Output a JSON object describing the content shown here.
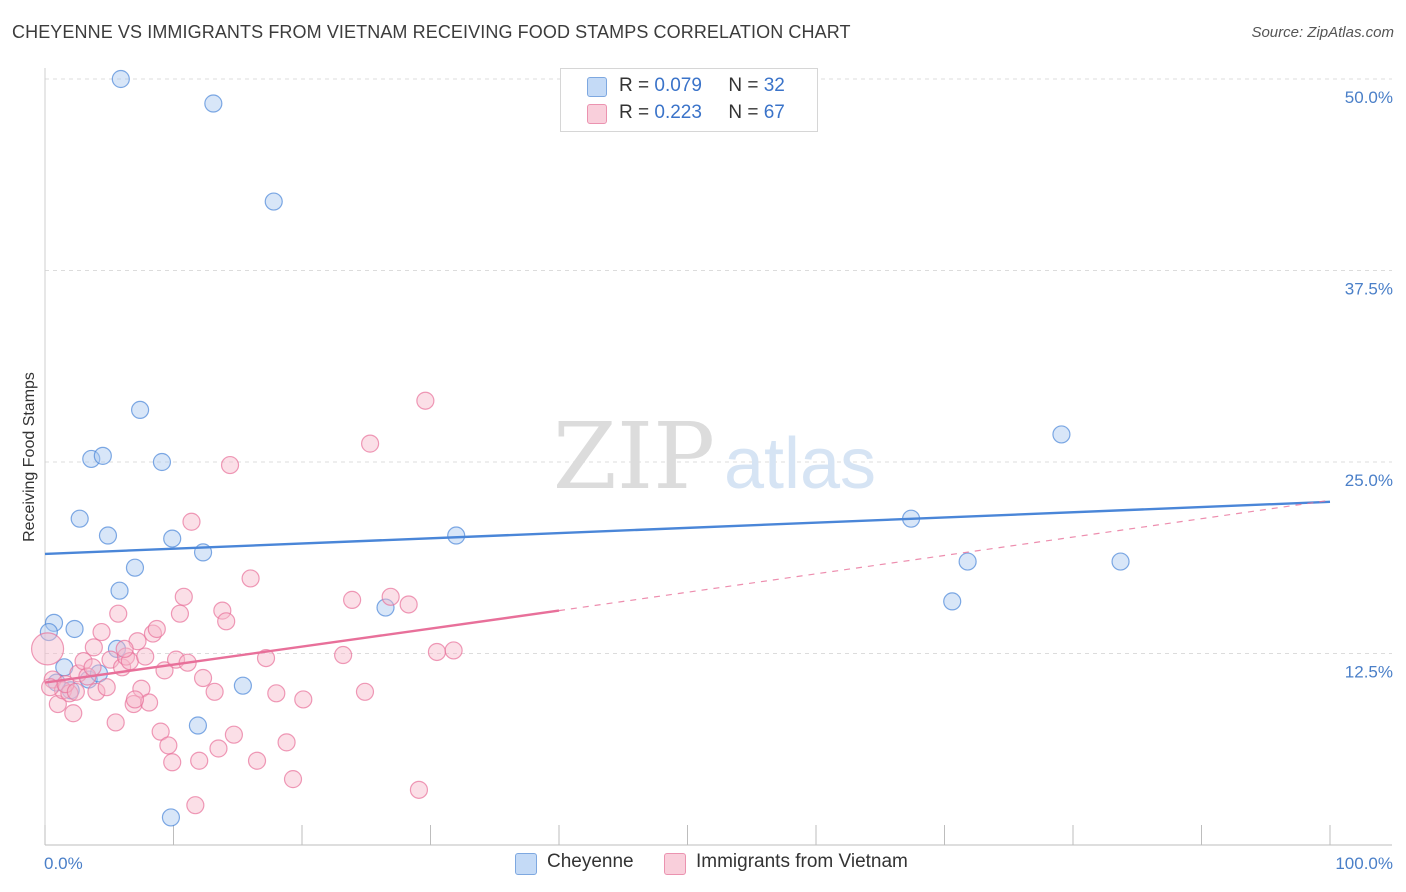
{
  "header": {
    "title": "CHEYENNE VS IMMIGRANTS FROM VIETNAM RECEIVING FOOD STAMPS CORRELATION CHART",
    "source": "Source: ZipAtlas.com"
  },
  "watermark": {
    "zip": "ZIP",
    "atlas": "atlas"
  },
  "legend": {
    "rows": [
      {
        "r_label": "R =",
        "r_value": "0.079",
        "n_label": "N =",
        "n_value": "32",
        "color": "#a8c8f0"
      },
      {
        "r_label": "R =",
        "r_value": "0.223",
        "n_label": "N =",
        "n_value": "67",
        "color": "#f6b8ca"
      }
    ]
  },
  "bottom_legend": [
    {
      "label": "Cheyenne",
      "color": "#a8c8f0"
    },
    {
      "label": "Immigrants from Vietnam",
      "color": "#f6b8ca"
    }
  ],
  "chart_data": {
    "type": "scatter",
    "title": "CHEYENNE VS IMMIGRANTS FROM VIETNAM RECEIVING FOOD STAMPS CORRELATION CHART",
    "ylabel": "Receiving Food Stamps",
    "xlim": [
      0,
      100
    ],
    "ylim": [
      0,
      50
    ],
    "x_tick_labels": [
      "0.0%",
      "100.0%"
    ],
    "y_ticks": [
      12.5,
      25.0,
      37.5,
      50.0
    ],
    "y_tick_labels": [
      "12.5%",
      "25.0%",
      "37.5%",
      "50.0%"
    ],
    "grid": true,
    "legend_position": "top-center",
    "series": [
      {
        "name": "Cheyenne",
        "color": "#4a86d8",
        "fill": "#a8c8f0",
        "trend": {
          "x": [
            0,
            100
          ],
          "y": [
            19.0,
            22.4
          ]
        },
        "points": [
          [
            5.9,
            50.0
          ],
          [
            13.1,
            48.4
          ],
          [
            17.8,
            42.0
          ],
          [
            7.4,
            28.4
          ],
          [
            3.6,
            25.2
          ],
          [
            4.5,
            25.4
          ],
          [
            9.1,
            25.0
          ],
          [
            2.7,
            21.3
          ],
          [
            4.9,
            20.2
          ],
          [
            9.9,
            20.0
          ],
          [
            12.3,
            19.1
          ],
          [
            7.0,
            18.1
          ],
          [
            5.8,
            16.6
          ],
          [
            0.7,
            14.5
          ],
          [
            2.3,
            14.1
          ],
          [
            0.3,
            13.9
          ],
          [
            1.5,
            11.6
          ],
          [
            2.0,
            10.1
          ],
          [
            3.4,
            10.8
          ],
          [
            4.2,
            11.2
          ],
          [
            5.6,
            12.8
          ],
          [
            15.4,
            10.4
          ],
          [
            11.9,
            7.8
          ],
          [
            9.8,
            1.8
          ],
          [
            32.0,
            20.2
          ],
          [
            26.5,
            15.5
          ],
          [
            67.4,
            21.3
          ],
          [
            71.8,
            18.5
          ],
          [
            70.6,
            15.9
          ],
          [
            79.1,
            26.8
          ],
          [
            83.7,
            18.5
          ],
          [
            0.9,
            10.6
          ]
        ]
      },
      {
        "name": "Immigrants from Vietnam",
        "color": "#e8709a",
        "fill": "#f6b8ca",
        "trend": {
          "x": [
            0,
            40
          ],
          "y": [
            10.6,
            15.3
          ]
        },
        "trend_dashed": {
          "x": [
            40,
            100
          ],
          "y": [
            15.3,
            22.5
          ]
        },
        "points": [
          [
            0.2,
            12.8
          ],
          [
            0.6,
            10.8
          ],
          [
            1.0,
            9.2
          ],
          [
            1.4,
            10.1
          ],
          [
            1.9,
            9.9
          ],
          [
            2.2,
            8.6
          ],
          [
            2.6,
            11.2
          ],
          [
            3.0,
            12.0
          ],
          [
            3.3,
            11.0
          ],
          [
            3.7,
            11.6
          ],
          [
            4.0,
            10.0
          ],
          [
            4.4,
            13.9
          ],
          [
            4.8,
            10.3
          ],
          [
            5.1,
            12.1
          ],
          [
            5.5,
            8.0
          ],
          [
            5.7,
            15.1
          ],
          [
            6.0,
            11.6
          ],
          [
            6.3,
            12.3
          ],
          [
            6.6,
            12.0
          ],
          [
            6.9,
            9.2
          ],
          [
            7.2,
            13.3
          ],
          [
            7.5,
            10.2
          ],
          [
            7.8,
            12.3
          ],
          [
            8.1,
            9.3
          ],
          [
            8.4,
            13.8
          ],
          [
            8.7,
            14.1
          ],
          [
            9.0,
            7.4
          ],
          [
            9.3,
            11.4
          ],
          [
            9.6,
            6.5
          ],
          [
            9.9,
            5.4
          ],
          [
            10.2,
            12.1
          ],
          [
            10.5,
            15.1
          ],
          [
            10.8,
            16.2
          ],
          [
            11.1,
            11.9
          ],
          [
            11.4,
            21.1
          ],
          [
            11.7,
            2.6
          ],
          [
            12.0,
            5.5
          ],
          [
            12.3,
            10.9
          ],
          [
            13.2,
            10.0
          ],
          [
            13.5,
            6.3
          ],
          [
            13.8,
            15.3
          ],
          [
            14.1,
            14.6
          ],
          [
            14.4,
            24.8
          ],
          [
            14.7,
            7.2
          ],
          [
            16.0,
            17.4
          ],
          [
            16.5,
            5.5
          ],
          [
            17.2,
            12.2
          ],
          [
            18.0,
            9.9
          ],
          [
            18.8,
            6.7
          ],
          [
            19.3,
            4.3
          ],
          [
            20.1,
            9.5
          ],
          [
            23.2,
            12.4
          ],
          [
            23.9,
            16.0
          ],
          [
            24.9,
            10.0
          ],
          [
            25.3,
            26.2
          ],
          [
            26.9,
            16.2
          ],
          [
            28.3,
            15.7
          ],
          [
            29.1,
            3.6
          ],
          [
            29.6,
            29.0
          ],
          [
            30.5,
            12.6
          ],
          [
            31.8,
            12.7
          ],
          [
            0.4,
            10.3
          ],
          [
            1.6,
            10.5
          ],
          [
            2.4,
            10.0
          ],
          [
            3.8,
            12.9
          ],
          [
            6.2,
            12.8
          ],
          [
            7.0,
            9.5
          ]
        ]
      }
    ]
  }
}
